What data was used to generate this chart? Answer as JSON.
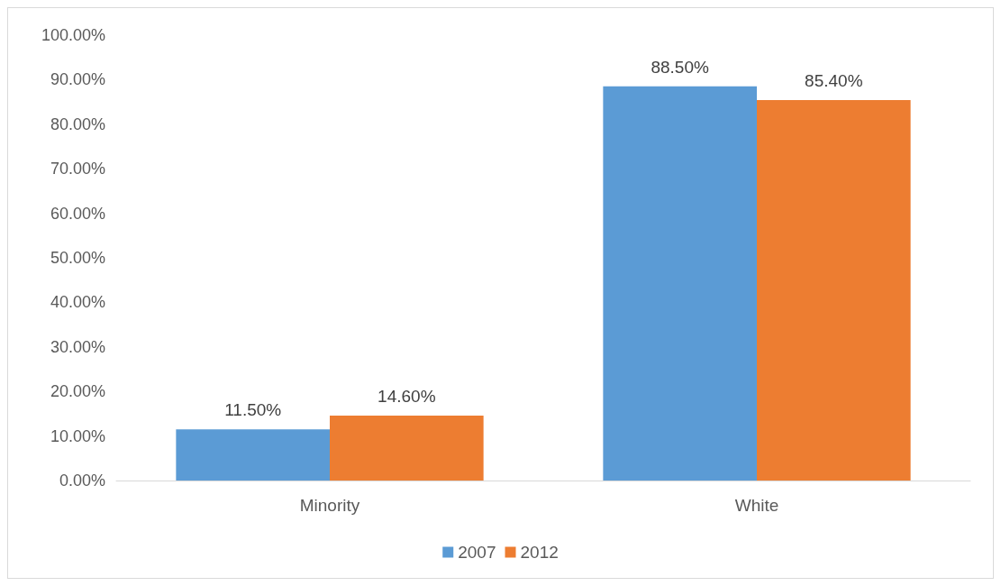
{
  "chart_data": {
    "type": "bar",
    "categories": [
      "Minority",
      "White"
    ],
    "series": [
      {
        "name": "2007",
        "color": "#5b9bd5",
        "values": [
          11.5,
          88.5
        ],
        "value_labels": [
          "11.50%",
          "88.50%"
        ]
      },
      {
        "name": "2012",
        "color": "#ed7d31",
        "values": [
          14.6,
          85.4
        ],
        "value_labels": [
          "14.60%",
          "85.40%"
        ]
      }
    ],
    "ylim": [
      0,
      100
    ],
    "yticks": [
      {
        "value": 0,
        "label": "0.00%"
      },
      {
        "value": 10,
        "label": "10.00%"
      },
      {
        "value": 20,
        "label": "20.00%"
      },
      {
        "value": 30,
        "label": "30.00%"
      },
      {
        "value": 40,
        "label": "40.00%"
      },
      {
        "value": 50,
        "label": "50.00%"
      },
      {
        "value": 60,
        "label": "60.00%"
      },
      {
        "value": 70,
        "label": "70.00%"
      },
      {
        "value": 80,
        "label": "80.00%"
      },
      {
        "value": 90,
        "label": "90.00%"
      },
      {
        "value": 100,
        "label": "100.00%"
      }
    ],
    "grid": false,
    "legend": "bottom"
  }
}
